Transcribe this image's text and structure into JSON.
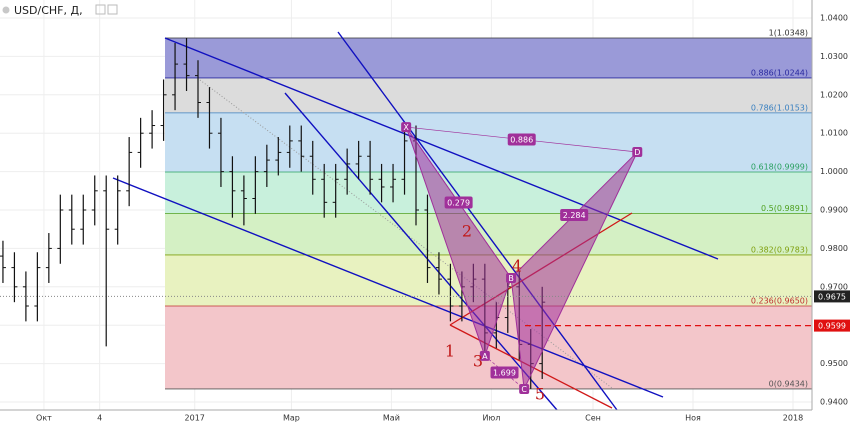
{
  "chart_data": {
    "type": "ohlc",
    "title": "USD/CHF, Д,",
    "xlim": [
      -26.8,
      468.6
    ],
    "ylim": [
      0.93792,
      1.04469
    ],
    "xticks": [
      {
        "value": 0,
        "label": "Окт"
      },
      {
        "value": 34,
        "label": "4"
      },
      {
        "value": 92,
        "label": "2017"
      },
      {
        "value": 151,
        "label": "Мар"
      },
      {
        "value": 212,
        "label": "Май"
      },
      {
        "value": 273,
        "label": "Июл"
      },
      {
        "value": 335,
        "label": "Сен"
      },
      {
        "value": 396,
        "label": "Ноя"
      },
      {
        "value": 457,
        "label": "2018"
      }
    ],
    "yticks": [
      {
        "value": 0.94,
        "label": "0.9400"
      },
      {
        "value": 0.95,
        "label": "0.9500"
      },
      {
        "value": 0.96,
        "label": "0.9600"
      },
      {
        "value": 0.97,
        "label": "0.9700"
      },
      {
        "value": 0.98,
        "label": "0.9800"
      },
      {
        "value": 0.99,
        "label": "0.9900"
      },
      {
        "value": 1.0,
        "label": "1.0000"
      },
      {
        "value": 1.01,
        "label": "1.0100"
      },
      {
        "value": 1.02,
        "label": "1.0200"
      },
      {
        "value": 1.03,
        "label": "1.0300"
      },
      {
        "value": 1.04,
        "label": "1.0400"
      }
    ],
    "grid": true,
    "color": "#111111",
    "x": [
      -25,
      -18,
      -11,
      -4,
      3,
      10,
      17,
      24,
      31,
      38,
      45,
      52,
      59,
      66,
      73,
      80,
      87,
      94,
      101,
      108,
      115,
      122,
      129,
      136,
      143,
      150,
      157,
      164,
      171,
      178,
      185,
      192,
      199,
      206,
      213,
      220,
      227,
      234,
      241,
      248,
      255,
      262,
      269,
      276,
      283,
      290,
      297,
      304
    ],
    "open": [
      0.978,
      0.975,
      0.97,
      0.965,
      0.975,
      0.98,
      0.99,
      0.985,
      0.99,
      0.995,
      0.985,
      0.995,
      1.005,
      1.01,
      1.012,
      1.02,
      1.028,
      1.025,
      1.018,
      1.01,
      1.0,
      0.995,
      0.993,
      1.0,
      1.003,
      1.005,
      1.008,
      1.004,
      0.998,
      0.992,
      0.998,
      1.002,
      1.004,
      0.998,
      0.996,
      0.998,
      1.008,
      0.99,
      0.975,
      0.972,
      0.965,
      0.97,
      0.972,
      0.958,
      0.962,
      0.97,
      0.955,
      0.95
    ],
    "high": [
      0.982,
      0.979,
      0.974,
      0.979,
      0.984,
      0.994,
      0.994,
      0.994,
      0.999,
      0.999,
      0.999,
      1.009,
      1.014,
      1.016,
      1.024,
      1.0335,
      1.0348,
      1.029,
      1.022,
      1.014,
      1.004,
      0.999,
      1.004,
      1.007,
      1.009,
      1.012,
      1.012,
      1.008,
      1.002,
      1.002,
      1.006,
      1.008,
      1.008,
      1.002,
      1.002,
      1.0116,
      1.012,
      0.994,
      0.979,
      0.976,
      0.974,
      0.976,
      0.976,
      0.966,
      0.9723,
      0.974,
      0.959,
      0.97
    ],
    "low": [
      0.971,
      0.966,
      0.961,
      0.961,
      0.971,
      0.976,
      0.981,
      0.981,
      0.986,
      0.9545,
      0.981,
      0.991,
      1.001,
      1.006,
      1.008,
      1.016,
      1.021,
      1.014,
      1.006,
      0.996,
      0.988,
      0.986,
      0.989,
      0.996,
      0.999,
      1.001,
      1.0,
      0.994,
      0.988,
      0.988,
      0.994,
      0.998,
      0.994,
      0.992,
      0.992,
      0.994,
      0.986,
      0.971,
      0.968,
      0.961,
      0.961,
      0.966,
      0.952,
      0.954,
      0.958,
      0.951,
      0.9434,
      0.946
    ],
    "close": [
      0.975,
      0.97,
      0.965,
      0.975,
      0.98,
      0.99,
      0.985,
      0.99,
      0.995,
      0.985,
      0.995,
      1.005,
      1.01,
      1.012,
      1.02,
      1.028,
      1.025,
      1.018,
      1.01,
      1.0,
      0.995,
      0.993,
      1.0,
      1.003,
      1.005,
      1.008,
      1.004,
      0.998,
      0.992,
      0.998,
      1.002,
      1.004,
      0.998,
      0.996,
      0.998,
      1.008,
      0.99,
      0.975,
      0.972,
      0.965,
      0.97,
      0.972,
      0.958,
      0.962,
      0.97,
      0.955,
      0.95,
      0.966
    ],
    "fib_levels": [
      {
        "value": 1.0348,
        "label": "1(1.0348)"
      },
      {
        "value": 1.0244,
        "label": "0.886(1.0244)"
      },
      {
        "value": 1.0153,
        "label": "0.786(1.0153)"
      },
      {
        "value": 0.9999,
        "label": "0.618(0.9999)"
      },
      {
        "value": 0.9891,
        "label": "0.5(0.9891)"
      },
      {
        "value": 0.9783,
        "label": "0.382(0.9783)"
      },
      {
        "value": 0.965,
        "label": "0.236(0.9650)"
      },
      {
        "value": 0.9434,
        "label": "0(0.9434)"
      }
    ],
    "fib_colors": [
      "#9a9ad8",
      "#dcdcdc",
      "#c6dff2",
      "#c8f0dc",
      "#d4f0c4",
      "#e8f2c0",
      "#f3c6ca"
    ],
    "fib_label_colors": [
      "#333333",
      "#2a2aa0",
      "#3a80c0",
      "#2aa060",
      "#50a020",
      "#80a010",
      "#c03030",
      "#555555"
    ],
    "pattern_points": [
      {
        "label": "X",
        "x": 221,
        "y": 1.0116
      },
      {
        "label": "A",
        "x": 269,
        "y": 0.952
      },
      {
        "label": "B",
        "x": 285,
        "y": 0.9723
      },
      {
        "label": "C",
        "x": 293,
        "y": 0.9434
      },
      {
        "label": "D",
        "x": 362,
        "y": 1.0051
      }
    ],
    "pattern_color": "#a0309a",
    "pattern_ratios": [
      0.886,
      0.279,
      2.284,
      1.699
    ],
    "wave_labels": [
      1,
      2,
      3,
      4,
      5
    ],
    "wave_color": "#c01818",
    "last_price": {
      "value": 0.9675,
      "label": "0.9675"
    },
    "alert_price": {
      "value": 0.9599,
      "label": "0.9599"
    }
  }
}
